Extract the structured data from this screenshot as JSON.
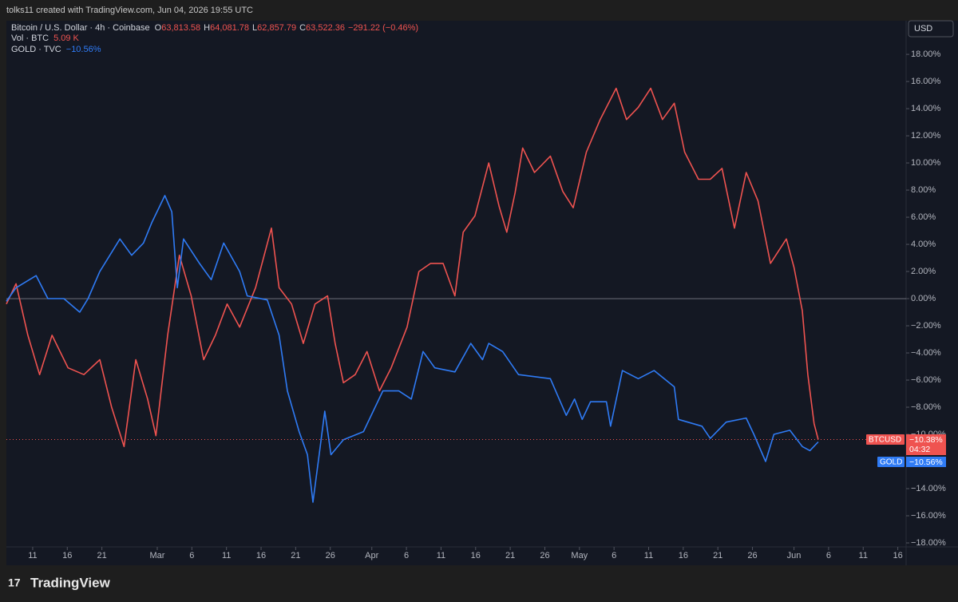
{
  "header": {
    "text": "tolks11 created with TradingView.com, Jun 04, 2026 19:55 UTC"
  },
  "footer": {
    "brand": "TradingView"
  },
  "legend_rows": {
    "main": {
      "title": "Bitcoin / U.S. Dollar · 4h · Coinbase",
      "o_label": "O",
      "o": "63,813.58",
      "h_label": "H",
      "h": "64,081.78",
      "l_label": "L",
      "l": "62,857.79",
      "c_label": "C",
      "c": "63,522.36",
      "change": "−291.22 (−0.46%)"
    },
    "vol": {
      "title": "Vol · BTC",
      "value": "5.09 K"
    },
    "gold": {
      "title": "GOLD · TVC",
      "value": "−10.56%"
    }
  },
  "currency": "USD",
  "chart_data": {
    "type": "line",
    "xlim": [
      6.2,
      136.2
    ],
    "ylim": [
      -18.5,
      20.3
    ],
    "xticks": [
      {
        "value": 10,
        "label": "11"
      },
      {
        "value": 15,
        "label": "16"
      },
      {
        "value": 20,
        "label": "21"
      },
      {
        "value": 28,
        "label": "Mar"
      },
      {
        "value": 33,
        "label": "6"
      },
      {
        "value": 38,
        "label": "11"
      },
      {
        "value": 43,
        "label": "16"
      },
      {
        "value": 48,
        "label": "21"
      },
      {
        "value": 53,
        "label": "26"
      },
      {
        "value": 59,
        "label": "Apr"
      },
      {
        "value": 64,
        "label": "6"
      },
      {
        "value": 69,
        "label": "11"
      },
      {
        "value": 74,
        "label": "16"
      },
      {
        "value": 79,
        "label": "21"
      },
      {
        "value": 84,
        "label": "26"
      },
      {
        "value": 89,
        "label": "May"
      },
      {
        "value": 94,
        "label": "6"
      },
      {
        "value": 99,
        "label": "11"
      },
      {
        "value": 104,
        "label": "16"
      },
      {
        "value": 109,
        "label": "21"
      },
      {
        "value": 114,
        "label": "26"
      },
      {
        "value": 120,
        "label": "Jun"
      },
      {
        "value": 125,
        "label": "6"
      },
      {
        "value": 130,
        "label": "11"
      },
      {
        "value": 135,
        "label": "16"
      }
    ],
    "yticks": [
      {
        "value": 18,
        "label": "18.00%"
      },
      {
        "value": 16,
        "label": "16.00%"
      },
      {
        "value": 14,
        "label": "14.00%"
      },
      {
        "value": 12,
        "label": "12.00%"
      },
      {
        "value": 10,
        "label": "10.00%"
      },
      {
        "value": 8,
        "label": "8.00%"
      },
      {
        "value": 6,
        "label": "6.00%"
      },
      {
        "value": 4,
        "label": "4.00%"
      },
      {
        "value": 2,
        "label": "2.00%"
      },
      {
        "value": 0,
        "label": "0.00%"
      },
      {
        "value": -2,
        "label": "−2.00%"
      },
      {
        "value": -4,
        "label": "−4.00%"
      },
      {
        "value": -6,
        "label": "−6.00%"
      },
      {
        "value": -8,
        "label": "−8.00%"
      },
      {
        "value": -10,
        "label": "−10.00%"
      },
      {
        "value": -14,
        "label": "−14.00%"
      },
      {
        "value": -16,
        "label": "−16.00%"
      },
      {
        "value": -18,
        "label": "−18.00%"
      }
    ],
    "grid": false,
    "series": [
      {
        "name": "BTCUSD",
        "color": "#ef5350",
        "tag_label": "−10.38%",
        "tag_time": "04:32",
        "x": [
          6.2,
          7.6,
          9.3,
          11.0,
          12.8,
          15.1,
          17.4,
          19.7,
          21.4,
          23.2,
          24.9,
          26.6,
          27.8,
          29.5,
          31.2,
          32.9,
          34.7,
          36.4,
          38.1,
          39.9,
          42.2,
          44.5,
          45.6,
          47.4,
          49.1,
          50.8,
          52.6,
          53.7,
          54.9,
          56.6,
          58.3,
          60.1,
          61.8,
          64.1,
          65.8,
          67.5,
          69.3,
          71.0,
          72.2,
          73.9,
          75.9,
          77.4,
          78.5,
          79.7,
          80.8,
          82.5,
          84.8,
          86.6,
          88.1,
          90.0,
          92.0,
          94.3,
          95.8,
          97.5,
          99.3,
          101.0,
          102.7,
          104.2,
          106.2,
          107.9,
          109.6,
          111.4,
          113.1,
          114.8,
          116.6,
          118.9,
          120.0,
          121.2,
          122.0,
          122.9,
          123.5
        ],
        "values": [
          -0.4,
          1.1,
          -2.7,
          -5.6,
          -2.7,
          -5.1,
          -5.6,
          -4.5,
          -8,
          -10.9,
          -4.5,
          -7.4,
          -10.1,
          -2.7,
          3.2,
          0.2,
          -4.5,
          -2.7,
          -0.4,
          -2.1,
          0.8,
          5.2,
          0.8,
          -0.4,
          -3.3,
          -0.4,
          0.2,
          -3.3,
          -6.2,
          -5.6,
          -3.9,
          -6.8,
          -5.1,
          -2.1,
          2,
          2.6,
          2.6,
          0.2,
          4.9,
          6.1,
          10,
          6.8,
          4.9,
          7.8,
          11.1,
          9.3,
          10.5,
          7.9,
          6.7,
          10.8,
          13.2,
          15.5,
          13.2,
          14.1,
          15.5,
          13.2,
          14.4,
          10.8,
          8.8,
          8.8,
          9.6,
          5.2,
          9.3,
          7.2,
          2.6,
          4.4,
          2.3,
          -0.9,
          -5.6,
          -9.2,
          -10.38
        ]
      },
      {
        "name": "GOLD",
        "color": "#2f7bf5",
        "tag_label": "−10.56%",
        "x": [
          6.2,
          7.6,
          10.5,
          12.2,
          14.5,
          16.8,
          18.0,
          19.7,
          22.6,
          24.3,
          26.0,
          27.2,
          29.1,
          30.1,
          30.9,
          31.8,
          34.1,
          35.8,
          37.6,
          39.9,
          41.0,
          43.9,
          45.6,
          46.8,
          48.5,
          49.7,
          50.5,
          51.4,
          52.2,
          53.1,
          54.9,
          57.8,
          60.6,
          62.9,
          64.7,
          66.4,
          68.1,
          71.0,
          73.3,
          75.0,
          75.9,
          77.9,
          80.2,
          84.8,
          87.1,
          88.3,
          89.4,
          90.6,
          92.9,
          93.5,
          95.2,
          97.5,
          99.8,
          102.7,
          103.3,
          106.7,
          107.9,
          110.2,
          113.1,
          114.2,
          115.9,
          117.1,
          119.4,
          121.2,
          122.3,
          123.5
        ],
        "values": [
          -0.2,
          0.8,
          1.7,
          0,
          0,
          -1,
          0,
          2,
          4.4,
          3.2,
          4.1,
          5.6,
          7.6,
          6.4,
          0.8,
          4.4,
          2.6,
          1.4,
          4.1,
          2,
          0.2,
          -0.1,
          -2.7,
          -6.8,
          -9.8,
          -11.5,
          -15,
          -11.5,
          -8.3,
          -11.5,
          -10.4,
          -9.8,
          -6.8,
          -6.8,
          -7.4,
          -3.9,
          -5.1,
          -5.4,
          -3.3,
          -4.5,
          -3.3,
          -3.9,
          -5.6,
          -5.9,
          -8.6,
          -7.4,
          -8.9,
          -7.6,
          -7.6,
          -9.4,
          -5.3,
          -5.9,
          -5.3,
          -6.5,
          -8.9,
          -9.4,
          -10.3,
          -9.1,
          -8.8,
          -10,
          -12,
          -10,
          -9.7,
          -10.9,
          -11.2,
          -10.56
        ]
      }
    ]
  }
}
